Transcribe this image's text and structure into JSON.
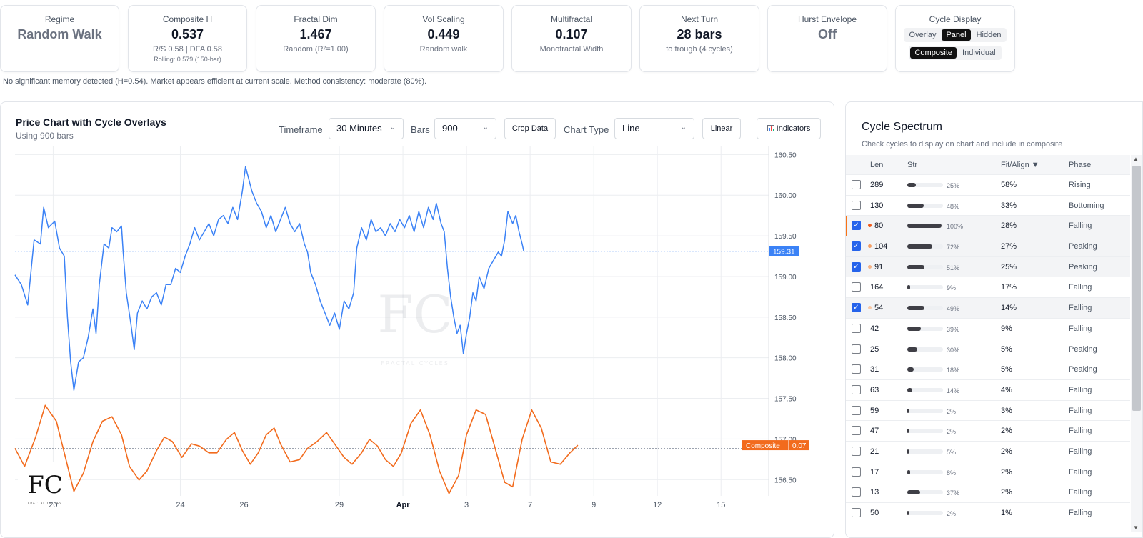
{
  "metrics": {
    "regime": {
      "label": "Regime",
      "value": "Random Walk"
    },
    "composite_h": {
      "label": "Composite H",
      "value": "0.537",
      "sub": "R/S 0.58 | DFA 0.58",
      "sub2": "Rolling: 0.579 (150-bar)"
    },
    "fractal_dim": {
      "label": "Fractal Dim",
      "value": "1.467",
      "sub": "Random (R²=1.00)"
    },
    "vol_scaling": {
      "label": "Vol Scaling",
      "value": "0.449",
      "sub": "Random walk"
    },
    "multifractal": {
      "label": "Multifractal",
      "value": "0.107",
      "sub": "Monofractal Width"
    },
    "next_turn": {
      "label": "Next Turn",
      "value": "28 bars",
      "sub": "to trough (4 cycles)"
    },
    "hurst_envelope": {
      "label": "Hurst Envelope",
      "value": "Off"
    },
    "cycle_display": {
      "label": "Cycle Display",
      "modes": [
        "Overlay",
        "Panel",
        "Hidden"
      ],
      "active_mode": "Panel",
      "views": [
        "Composite",
        "Individual"
      ],
      "active_view": "Composite"
    }
  },
  "memory_note": "No significant memory detected (H=0.54). Market appears efficient at current scale. Method consistency: moderate (80%).",
  "chart_panel": {
    "title": "Price Chart with Cycle Overlays",
    "subtitle": "Using 900 bars",
    "controls": {
      "timeframe_label": "Timeframe",
      "timeframe_value": "30 Minutes",
      "bars_label": "Bars",
      "bars_value": "900",
      "crop_label": "Crop Data",
      "chart_type_label": "Chart Type",
      "chart_type_value": "Line",
      "scale_label": "Linear",
      "indicators_label": "Indicators"
    },
    "watermark": {
      "text": "FRACTAL CYCLES"
    }
  },
  "chart_data": {
    "type": "line",
    "y_ticks": [
      160.5,
      160.0,
      159.5,
      159.0,
      158.5,
      158.0,
      157.5,
      157.0,
      156.5
    ],
    "y_tick_labels": [
      "160.50",
      "160.00",
      "159.50",
      "159.00",
      "158.50",
      "158.00",
      "157.50",
      "157.00",
      "156.50"
    ],
    "ylim": [
      156.3,
      160.6
    ],
    "x_ticks": [
      {
        "x": 20,
        "label": "20"
      },
      {
        "x": 24,
        "label": "24"
      },
      {
        "x": 26,
        "label": "26"
      },
      {
        "x": 29,
        "label": "29"
      },
      {
        "x": 31,
        "label": "Apr",
        "bold": true
      },
      {
        "x": 33,
        "label": "3"
      },
      {
        "x": 35,
        "label": "7"
      },
      {
        "x": 37,
        "label": "9"
      },
      {
        "x": 39,
        "label": "12"
      },
      {
        "x": 41,
        "label": "15"
      }
    ],
    "xlim": [
      18.8,
      42.5
    ],
    "price_series": {
      "color": "#3b82f6",
      "last_value_label": "159.31",
      "last_value": 159.31,
      "points": [
        [
          18.8,
          159.02
        ],
        [
          19.0,
          158.9
        ],
        [
          19.2,
          158.65
        ],
        [
          19.4,
          159.45
        ],
        [
          19.6,
          159.4
        ],
        [
          19.7,
          159.85
        ],
        [
          19.85,
          159.6
        ],
        [
          20.05,
          159.68
        ],
        [
          20.2,
          159.35
        ],
        [
          20.35,
          159.25
        ],
        [
          20.45,
          158.5
        ],
        [
          20.55,
          157.95
        ],
        [
          20.65,
          157.6
        ],
        [
          20.8,
          157.95
        ],
        [
          20.95,
          158.0
        ],
        [
          21.1,
          158.25
        ],
        [
          21.25,
          158.6
        ],
        [
          21.35,
          158.3
        ],
        [
          21.45,
          158.9
        ],
        [
          21.6,
          159.4
        ],
        [
          21.75,
          159.35
        ],
        [
          21.85,
          159.6
        ],
        [
          22.0,
          159.55
        ],
        [
          22.15,
          159.62
        ],
        [
          22.2,
          159.3
        ],
        [
          22.3,
          158.8
        ],
        [
          22.45,
          158.4
        ],
        [
          22.55,
          158.1
        ],
        [
          22.65,
          158.55
        ],
        [
          22.8,
          158.7
        ],
        [
          22.95,
          158.6
        ],
        [
          23.1,
          158.75
        ],
        [
          23.25,
          158.8
        ],
        [
          23.4,
          158.65
        ],
        [
          23.55,
          158.9
        ],
        [
          23.7,
          158.9
        ],
        [
          23.85,
          159.1
        ],
        [
          24.0,
          159.05
        ],
        [
          24.15,
          159.25
        ],
        [
          24.3,
          159.4
        ],
        [
          24.45,
          159.6
        ],
        [
          24.6,
          159.45
        ],
        [
          24.75,
          159.55
        ],
        [
          24.9,
          159.65
        ],
        [
          25.05,
          159.5
        ],
        [
          25.2,
          159.7
        ],
        [
          25.35,
          159.75
        ],
        [
          25.5,
          159.65
        ],
        [
          25.65,
          159.85
        ],
        [
          25.8,
          159.7
        ],
        [
          25.95,
          160.05
        ],
        [
          26.05,
          160.35
        ],
        [
          26.15,
          160.2
        ],
        [
          26.25,
          160.05
        ],
        [
          26.4,
          159.9
        ],
        [
          26.55,
          159.8
        ],
        [
          26.7,
          159.6
        ],
        [
          26.85,
          159.75
        ],
        [
          27.0,
          159.55
        ],
        [
          27.15,
          159.7
        ],
        [
          27.3,
          159.85
        ],
        [
          27.45,
          159.65
        ],
        [
          27.6,
          159.55
        ],
        [
          27.75,
          159.65
        ],
        [
          27.9,
          159.4
        ],
        [
          28.0,
          159.3
        ],
        [
          28.1,
          159.05
        ],
        [
          28.25,
          158.9
        ],
        [
          28.4,
          158.7
        ],
        [
          28.55,
          158.55
        ],
        [
          28.7,
          158.4
        ],
        [
          28.85,
          158.55
        ],
        [
          29.0,
          158.35
        ],
        [
          29.15,
          158.7
        ],
        [
          29.3,
          158.6
        ],
        [
          29.45,
          158.8
        ],
        [
          29.55,
          159.35
        ],
        [
          29.7,
          159.6
        ],
        [
          29.85,
          159.45
        ],
        [
          30.0,
          159.7
        ],
        [
          30.15,
          159.55
        ],
        [
          30.3,
          159.6
        ],
        [
          30.45,
          159.5
        ],
        [
          30.6,
          159.65
        ],
        [
          30.75,
          159.55
        ],
        [
          30.9,
          159.7
        ],
        [
          31.05,
          159.6
        ],
        [
          31.2,
          159.75
        ],
        [
          31.35,
          159.55
        ],
        [
          31.5,
          159.8
        ],
        [
          31.65,
          159.6
        ],
        [
          31.8,
          159.85
        ],
        [
          31.95,
          159.7
        ],
        [
          32.05,
          159.9
        ],
        [
          32.2,
          159.65
        ],
        [
          32.3,
          159.55
        ],
        [
          32.4,
          159.1
        ],
        [
          32.5,
          158.75
        ],
        [
          32.6,
          158.5
        ],
        [
          32.7,
          158.3
        ],
        [
          32.8,
          158.4
        ],
        [
          32.9,
          158.05
        ],
        [
          33.0,
          158.3
        ],
        [
          33.1,
          158.5
        ],
        [
          33.2,
          158.8
        ],
        [
          33.3,
          158.7
        ],
        [
          33.4,
          159.0
        ],
        [
          33.55,
          158.85
        ],
        [
          33.7,
          159.1
        ],
        [
          33.85,
          159.2
        ],
        [
          34.0,
          159.3
        ],
        [
          34.1,
          159.25
        ],
        [
          34.2,
          159.45
        ],
        [
          34.3,
          159.8
        ],
        [
          34.45,
          159.65
        ],
        [
          34.55,
          159.75
        ],
        [
          34.65,
          159.55
        ],
        [
          34.75,
          159.4
        ],
        [
          34.8,
          159.31
        ]
      ]
    },
    "composite_series": {
      "name": "Composite",
      "color": "#f26b1d",
      "last_value_label": "0.07",
      "last_value": 0.07,
      "zero_value": 0.0,
      "ylim": [
        -1.05,
        1.05
      ],
      "points": [
        [
          18.8,
          0.0
        ],
        [
          19.1,
          -0.4
        ],
        [
          19.45,
          0.25
        ],
        [
          19.75,
          0.95
        ],
        [
          20.1,
          0.6
        ],
        [
          20.35,
          -0.1
        ],
        [
          20.65,
          -0.95
        ],
        [
          20.95,
          -0.55
        ],
        [
          21.25,
          0.15
        ],
        [
          21.55,
          0.6
        ],
        [
          21.85,
          0.7
        ],
        [
          22.15,
          0.3
        ],
        [
          22.4,
          -0.4
        ],
        [
          22.7,
          -0.7
        ],
        [
          22.95,
          -0.5
        ],
        [
          23.25,
          -0.05
        ],
        [
          23.5,
          0.25
        ],
        [
          23.75,
          0.15
        ],
        [
          24.05,
          -0.2
        ],
        [
          24.35,
          0.1
        ],
        [
          24.6,
          0.05
        ],
        [
          24.9,
          -0.1
        ],
        [
          25.15,
          -0.1
        ],
        [
          25.45,
          0.2
        ],
        [
          25.7,
          0.35
        ],
        [
          25.95,
          -0.05
        ],
        [
          26.2,
          -0.35
        ],
        [
          26.45,
          -0.1
        ],
        [
          26.7,
          0.3
        ],
        [
          26.95,
          0.45
        ],
        [
          27.15,
          0.1
        ],
        [
          27.45,
          -0.3
        ],
        [
          27.75,
          -0.25
        ],
        [
          28.0,
          0.0
        ],
        [
          28.3,
          0.15
        ],
        [
          28.6,
          0.35
        ],
        [
          28.85,
          0.1
        ],
        [
          29.15,
          -0.2
        ],
        [
          29.4,
          -0.35
        ],
        [
          29.7,
          -0.1
        ],
        [
          29.95,
          0.2
        ],
        [
          30.2,
          0.05
        ],
        [
          30.45,
          -0.25
        ],
        [
          30.7,
          -0.4
        ],
        [
          30.95,
          -0.1
        ],
        [
          31.25,
          0.55
        ],
        [
          31.55,
          0.85
        ],
        [
          31.85,
          0.3
        ],
        [
          32.15,
          -0.5
        ],
        [
          32.45,
          -1.0
        ],
        [
          32.75,
          -0.6
        ],
        [
          33.0,
          0.3
        ],
        [
          33.3,
          0.85
        ],
        [
          33.6,
          0.75
        ],
        [
          33.9,
          0.0
        ],
        [
          34.2,
          -0.75
        ],
        [
          34.45,
          -0.85
        ],
        [
          34.75,
          0.2
        ],
        [
          35.05,
          0.85
        ],
        [
          35.35,
          0.45
        ],
        [
          35.65,
          -0.3
        ],
        [
          35.95,
          -0.35
        ],
        [
          36.25,
          -0.1
        ],
        [
          36.5,
          0.07
        ]
      ]
    }
  },
  "spectrum": {
    "title": "Cycle Spectrum",
    "subtitle": "Check cycles to display on chart and include in composite",
    "columns": {
      "len": "Len",
      "str": "Str",
      "fit": "Fit/Align ▼",
      "phase": "Phase"
    },
    "rows": [
      {
        "len": "289",
        "str": 25,
        "str_label": "25%",
        "fit": "58%",
        "phase": "Rising",
        "checked": false,
        "dot": ""
      },
      {
        "len": "130",
        "str": 48,
        "str_label": "48%",
        "fit": "33%",
        "phase": "Bottoming",
        "checked": false,
        "dot": ""
      },
      {
        "len": "80",
        "str": 100,
        "str_label": "100%",
        "fit": "28%",
        "phase": "Falling",
        "checked": true,
        "dot": "#f05a1a"
      },
      {
        "len": "104",
        "str": 72,
        "str_label": "72%",
        "fit": "27%",
        "phase": "Peaking",
        "checked": true,
        "dot": "#f59e63"
      },
      {
        "len": "91",
        "str": 51,
        "str_label": "51%",
        "fit": "25%",
        "phase": "Peaking",
        "checked": true,
        "dot": "#f7b386"
      },
      {
        "len": "164",
        "str": 9,
        "str_label": "9%",
        "fit": "17%",
        "phase": "Falling",
        "checked": false,
        "dot": ""
      },
      {
        "len": "54",
        "str": 49,
        "str_label": "49%",
        "fit": "14%",
        "phase": "Falling",
        "checked": true,
        "dot": "#fac9a5"
      },
      {
        "len": "42",
        "str": 39,
        "str_label": "39%",
        "fit": "9%",
        "phase": "Falling",
        "checked": false,
        "dot": ""
      },
      {
        "len": "25",
        "str": 30,
        "str_label": "30%",
        "fit": "5%",
        "phase": "Peaking",
        "checked": false,
        "dot": ""
      },
      {
        "len": "31",
        "str": 18,
        "str_label": "18%",
        "fit": "5%",
        "phase": "Peaking",
        "checked": false,
        "dot": ""
      },
      {
        "len": "63",
        "str": 14,
        "str_label": "14%",
        "fit": "4%",
        "phase": "Falling",
        "checked": false,
        "dot": ""
      },
      {
        "len": "59",
        "str": 2,
        "str_label": "2%",
        "fit": "3%",
        "phase": "Falling",
        "checked": false,
        "dot": ""
      },
      {
        "len": "47",
        "str": 2,
        "str_label": "2%",
        "fit": "2%",
        "phase": "Falling",
        "checked": false,
        "dot": ""
      },
      {
        "len": "21",
        "str": 5,
        "str_label": "5%",
        "fit": "2%",
        "phase": "Falling",
        "checked": false,
        "dot": ""
      },
      {
        "len": "17",
        "str": 8,
        "str_label": "8%",
        "fit": "2%",
        "phase": "Falling",
        "checked": false,
        "dot": ""
      },
      {
        "len": "13",
        "str": 37,
        "str_label": "37%",
        "fit": "2%",
        "phase": "Falling",
        "checked": false,
        "dot": ""
      },
      {
        "len": "50",
        "str": 2,
        "str_label": "2%",
        "fit": "1%",
        "phase": "Falling",
        "checked": false,
        "dot": ""
      }
    ]
  }
}
